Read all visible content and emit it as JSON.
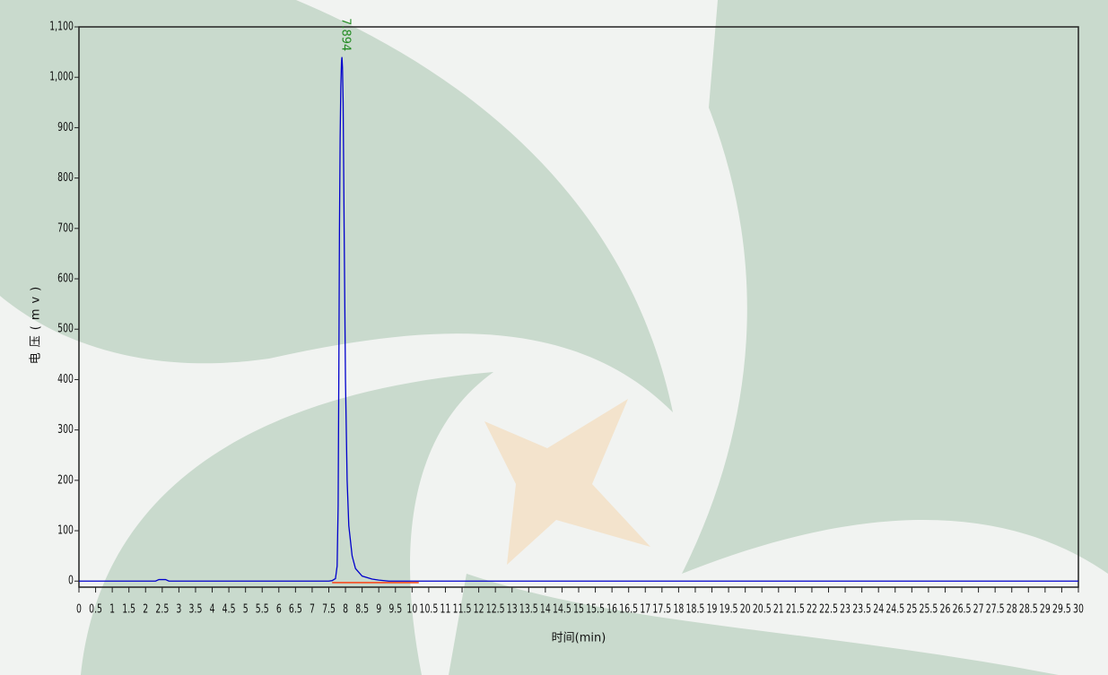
{
  "chart_data": {
    "type": "line",
    "x_label": "时间(min)",
    "y_label": "电压(mv)",
    "annotations": [
      "7.894"
    ],
    "annotation_color": "#228b22",
    "xlim": [
      0,
      30
    ],
    "ylim": [
      -12,
      1100
    ],
    "xticks": [
      0,
      0.5,
      1,
      1.5,
      2,
      2.5,
      3,
      3.5,
      4,
      4.5,
      5,
      5.5,
      6,
      6.5,
      7,
      7.5,
      8,
      8.5,
      9,
      9.5,
      10,
      10.5,
      11,
      11.5,
      12,
      12.5,
      13,
      13.5,
      14,
      14.5,
      15,
      15.5,
      16,
      16.5,
      17,
      17.5,
      18,
      18.5,
      19,
      19.5,
      20,
      20.5,
      21,
      21.5,
      22,
      22.5,
      23,
      23.5,
      24,
      24.5,
      25,
      25.5,
      26,
      26.5,
      27,
      27.5,
      28,
      28.5,
      29,
      29.5,
      30
    ],
    "yticks": [
      0,
      100,
      200,
      300,
      400,
      500,
      600,
      700,
      800,
      900,
      {
        "value": 1000,
        "label": "1,000"
      },
      {
        "value": 1100,
        "label": "1,100"
      }
    ],
    "series": [
      {
        "color": "#0000cc",
        "x": [
          0,
          2.3,
          2.4,
          2.6,
          2.7,
          7.5,
          7.6,
          7.7,
          7.75,
          7.78,
          7.8,
          7.82,
          7.84,
          7.86,
          7.88,
          7.894,
          7.91,
          7.93,
          7.96,
          8.0,
          8.05,
          8.1,
          8.2,
          8.3,
          8.5,
          8.8,
          9.0,
          9.3,
          30
        ],
        "values": [
          0,
          0,
          3,
          3,
          0,
          0,
          1,
          5,
          30,
          150,
          400,
          700,
          880,
          980,
          1030,
          1040,
          1020,
          950,
          700,
          400,
          200,
          110,
          50,
          25,
          10,
          4,
          2,
          0,
          0
        ]
      },
      {
        "color": "#ff3300",
        "x": [
          7.6,
          10.2
        ],
        "values": [
          -3,
          -3
        ]
      }
    ]
  }
}
